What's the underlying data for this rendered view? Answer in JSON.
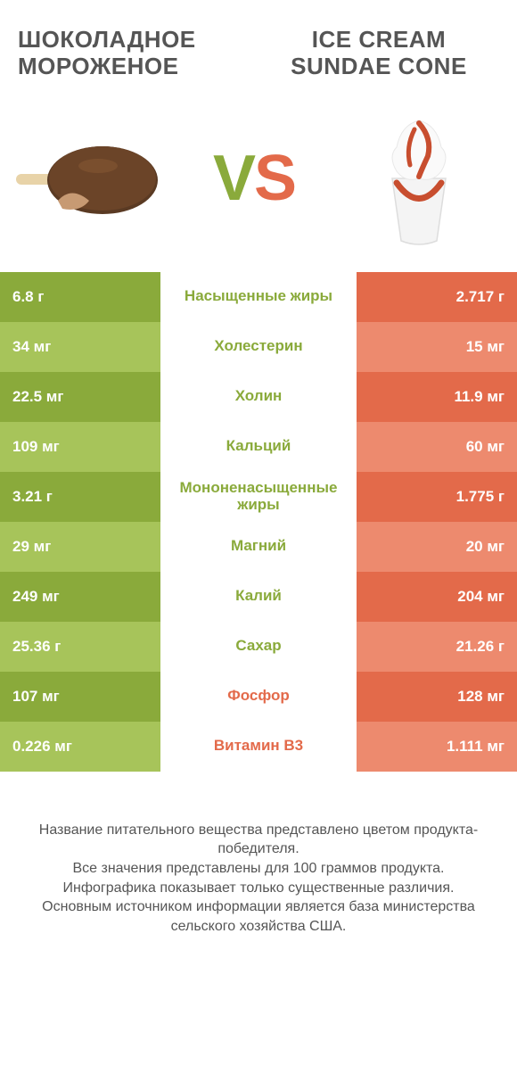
{
  "palette": {
    "green_dark": "#8aaa3b",
    "green_light": "#a7c45a",
    "orange_dark": "#e36a4a",
    "orange_light": "#ed8a6e",
    "mid_green_text": "#8aaa3b",
    "mid_orange_text": "#e36a4a",
    "title_color": "#555555",
    "footer_color": "#555555",
    "background": "#ffffff"
  },
  "header": {
    "left_title": "ШОКОЛАДНОЕ МОРОЖЕНОЕ",
    "right_title": "ICE CREAM SUNDAE CONE"
  },
  "vs": {
    "v": "V",
    "s": "S"
  },
  "rows": [
    {
      "left": "6.8 г",
      "mid": "Насыщенные жиры",
      "right": "2.717 г",
      "winner": "left"
    },
    {
      "left": "34 мг",
      "mid": "Холестерин",
      "right": "15 мг",
      "winner": "left"
    },
    {
      "left": "22.5 мг",
      "mid": "Холин",
      "right": "11.9 мг",
      "winner": "left"
    },
    {
      "left": "109 мг",
      "mid": "Кальций",
      "right": "60 мг",
      "winner": "left"
    },
    {
      "left": "3.21 г",
      "mid": "Мононенасыщенные жиры",
      "right": "1.775 г",
      "winner": "left"
    },
    {
      "left": "29 мг",
      "mid": "Магний",
      "right": "20 мг",
      "winner": "left"
    },
    {
      "left": "249 мг",
      "mid": "Калий",
      "right": "204 мг",
      "winner": "left"
    },
    {
      "left": "25.36 г",
      "mid": "Сахар",
      "right": "21.26 г",
      "winner": "left"
    },
    {
      "left": "107 мг",
      "mid": "Фосфор",
      "right": "128 мг",
      "winner": "right"
    },
    {
      "left": "0.226 мг",
      "mid": "Витамин B3",
      "right": "1.111 мг",
      "winner": "right"
    }
  ],
  "footer": {
    "l1": "Название питательного вещества представлено цветом продукта-победителя.",
    "l2": "Все значения представлены для 100 граммов продукта.",
    "l3": "Инфографика показывает только существенные различия.",
    "l4": "Основным источником информации является база министерства сельского хозяйства США."
  }
}
